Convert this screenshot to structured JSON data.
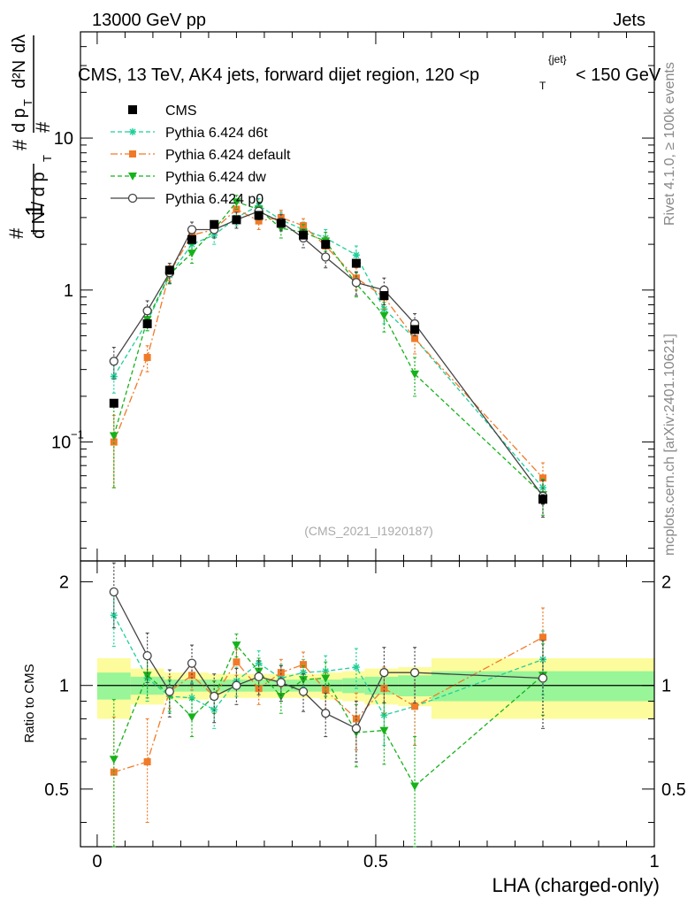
{
  "header": {
    "left": "13000 GeV pp",
    "right": "Jets"
  },
  "side_text": {
    "right_top": "Rivet 4.1.0, ≥ 100k events",
    "right_bottom": "mcplots.cern.ch [arXiv:2401.10621]"
  },
  "watermark": "(CMS_2021_I1920187)",
  "colors": {
    "cms": "#000000",
    "d6t": "#1ecf9a",
    "default": "#f07a28",
    "dw": "#16b21a",
    "p0": "#444444",
    "band_inner": "#98f598",
    "band_outer": "#fcfc9c"
  },
  "chart_data": [
    {
      "type": "scatter",
      "panel": "main",
      "title": "CMS, 13 TeV, AK4 jets, forward dijet region, 120 <p_T^{jet}< 150 GeV",
      "ylabel": "1/(dN/dp_T) d²N/(dp_T dλ)",
      "yscale": "log",
      "ylim": [
        0.0165,
        50
      ],
      "xlim": [
        -0.03,
        1.0
      ],
      "ytick_labels": [
        "10^{-1}",
        "1",
        "10"
      ],
      "x": [
        0.03,
        0.09,
        0.13,
        0.17,
        0.21,
        0.25,
        0.29,
        0.33,
        0.37,
        0.41,
        0.465,
        0.515,
        0.57,
        0.8
      ],
      "series": [
        {
          "name": "CMS",
          "marker": "square",
          "values": [
            0.18,
            0.6,
            1.35,
            2.15,
            2.7,
            2.9,
            3.1,
            2.75,
            2.3,
            2.0,
            1.5,
            0.92,
            0.55,
            0.042
          ],
          "err": [
            0.01,
            0.03,
            0.06,
            0.1,
            0.12,
            0.12,
            0.14,
            0.13,
            0.11,
            0.1,
            0.08,
            0.05,
            0.03,
            0.003
          ]
        },
        {
          "name": "Pythia 6.424 d6t",
          "marker": "star",
          "values": [
            0.27,
            0.62,
            1.25,
            2.0,
            2.3,
            3.0,
            3.6,
            2.9,
            2.5,
            2.2,
            1.7,
            0.75,
            0.48,
            0.05
          ],
          "err": [
            0.06,
            0.08,
            0.15,
            0.25,
            0.3,
            0.35,
            0.4,
            0.35,
            0.3,
            0.3,
            0.25,
            0.15,
            0.1,
            0.01
          ]
        },
        {
          "name": "Pythia 6.424 default",
          "marker": "square",
          "values": [
            0.1,
            0.36,
            1.3,
            2.3,
            2.5,
            3.4,
            2.85,
            3.0,
            2.65,
            1.95,
            1.2,
            0.9,
            0.48,
            0.058
          ],
          "err": [
            0.05,
            0.07,
            0.15,
            0.25,
            0.3,
            0.35,
            0.35,
            0.35,
            0.3,
            0.3,
            0.2,
            0.15,
            0.1,
            0.015
          ]
        },
        {
          "name": "Pythia 6.424 dw",
          "marker": "triangle-down",
          "values": [
            0.11,
            0.64,
            1.27,
            1.75,
            2.5,
            3.8,
            3.4,
            2.55,
            2.4,
            2.1,
            1.1,
            0.68,
            0.28,
            0.045
          ],
          "err": [
            0.06,
            0.1,
            0.15,
            0.25,
            0.3,
            0.4,
            0.4,
            0.35,
            0.3,
            0.3,
            0.2,
            0.15,
            0.08,
            0.012
          ]
        },
        {
          "name": "Pythia 6.424 p0",
          "marker": "circle-open",
          "values": [
            0.34,
            0.73,
            1.3,
            2.5,
            2.5,
            2.9,
            3.3,
            2.8,
            2.2,
            1.65,
            1.12,
            1.0,
            0.6,
            0.044
          ],
          "err": [
            0.08,
            0.12,
            0.2,
            0.3,
            0.3,
            0.35,
            0.4,
            0.35,
            0.3,
            0.25,
            0.2,
            0.2,
            0.1,
            0.012
          ]
        }
      ],
      "legend": {
        "placement": "top-left",
        "entries": [
          "CMS",
          "Pythia 6.424 d6t",
          "Pythia 6.424 default",
          "Pythia 6.424 dw",
          "Pythia 6.424 p0"
        ]
      }
    },
    {
      "type": "scatter",
      "panel": "ratio",
      "xlabel": "LHA (charged-only)",
      "ylabel": "Ratio to CMS",
      "ylim": [
        0.34,
        2.3
      ],
      "xlim": [
        -0.03,
        1.0
      ],
      "xtick_labels": [
        "0",
        "0.5",
        "1"
      ],
      "ytick_labels": [
        "0.5",
        "1",
        "2"
      ],
      "x": [
        0.03,
        0.09,
        0.13,
        0.17,
        0.21,
        0.25,
        0.29,
        0.33,
        0.37,
        0.41,
        0.465,
        0.515,
        0.57,
        0.8
      ],
      "series": [
        {
          "name": "Pythia 6.424 d6t",
          "values": [
            1.6,
            1.05,
            0.93,
            0.92,
            0.85,
            1.03,
            1.16,
            1.05,
            1.09,
            1.1,
            1.13,
            0.82,
            0.87,
            1.19
          ],
          "err": [
            0.3,
            0.15,
            0.1,
            0.1,
            0.1,
            0.1,
            0.1,
            0.1,
            0.1,
            0.12,
            0.15,
            0.15,
            0.2,
            0.25
          ]
        },
        {
          "name": "Pythia 6.424 default",
          "values": [
            0.56,
            0.6,
            0.96,
            1.07,
            0.93,
            1.17,
            0.98,
            1.09,
            1.15,
            0.97,
            0.8,
            0.98,
            0.87,
            1.38
          ],
          "err": [
            0.25,
            0.2,
            0.1,
            0.1,
            0.1,
            0.1,
            0.1,
            0.1,
            0.1,
            0.12,
            0.15,
            0.15,
            0.2,
            0.3
          ]
        },
        {
          "name": "Pythia 6.424 dw",
          "values": [
            0.61,
            1.07,
            0.94,
            0.81,
            0.93,
            1.31,
            1.1,
            0.93,
            1.04,
            1.05,
            0.73,
            0.74,
            0.51,
            1.07
          ],
          "err": [
            0.3,
            0.15,
            0.1,
            0.1,
            0.1,
            0.1,
            0.1,
            0.1,
            0.1,
            0.12,
            0.15,
            0.15,
            0.2,
            0.25
          ]
        },
        {
          "name": "Pythia 6.424 p0",
          "values": [
            1.87,
            1.22,
            0.96,
            1.16,
            0.93,
            1.0,
            1.06,
            1.02,
            0.96,
            0.83,
            0.75,
            1.09,
            1.09,
            1.05
          ],
          "err": [
            0.4,
            0.2,
            0.15,
            0.15,
            0.15,
            0.12,
            0.12,
            0.12,
            0.12,
            0.12,
            0.15,
            0.2,
            0.2,
            0.3
          ]
        }
      ],
      "bands": {
        "edges": [
          0.0,
          0.06,
          0.12,
          0.16,
          0.2,
          0.24,
          0.28,
          0.32,
          0.36,
          0.4,
          0.44,
          0.48,
          0.54,
          0.6,
          1.0
        ],
        "inner": [
          0.09,
          0.06,
          0.04,
          0.04,
          0.04,
          0.04,
          0.04,
          0.04,
          0.04,
          0.04,
          0.05,
          0.06,
          0.07,
          0.1
        ],
        "outer": [
          0.2,
          0.12,
          0.09,
          0.09,
          0.08,
          0.08,
          0.08,
          0.08,
          0.08,
          0.09,
          0.1,
          0.12,
          0.13,
          0.2
        ]
      }
    }
  ]
}
